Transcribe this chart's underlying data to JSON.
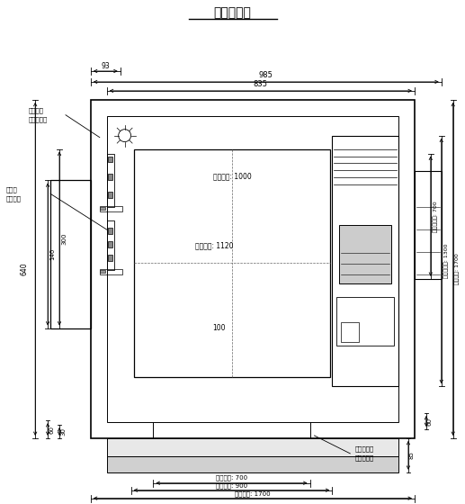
{
  "title": "井道平面图",
  "bg_color": "#ffffff",
  "line_color": "#000000",
  "fig_width": 5.17,
  "fig_height": 5.6,
  "dpi": 100,
  "labels": {
    "lighting1": "井道照明",
    "lighting2": "由客户自理",
    "cable1": "随行电",
    "cable2": "缆固定座",
    "concrete1": "混凝土填充",
    "concrete2": "由客户自理",
    "car_width": "轿厢净宽: 1000",
    "car_depth": "轿厢净深: 1120",
    "d100": "100",
    "d985": "985",
    "d835": "835",
    "d93": "93",
    "d700_door": "开门宽度: 700",
    "d900": "门洞宽度: 900",
    "d1700_bot": "井道净宽: 1700",
    "d700_right": "对重导轨距: 700",
    "d1300": "轿厢导轨距: 1300",
    "d1700_right": "井道净深: 1700",
    "d640": "640",
    "d140": "140",
    "d300": "300",
    "d60_left": "60",
    "d30": "30",
    "d60_right": "60",
    "d85": "85"
  }
}
